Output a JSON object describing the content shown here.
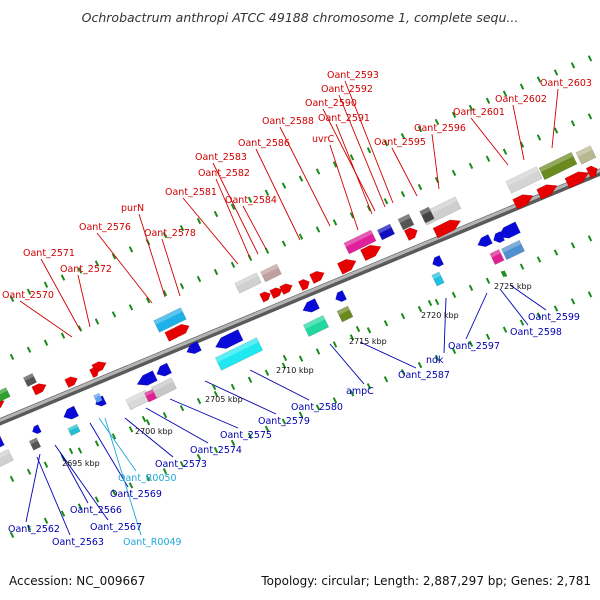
{
  "title": "Ochrobactrum anthropi ATCC 49188 chromosome 1, complete sequ...",
  "footer": {
    "accession": "Accession: NC_009667",
    "summary": "Topology: circular; Length: 2,887,297 bp; Genes: 2,781"
  },
  "colors": {
    "forward_label": "#d00000",
    "reverse_label": "#0000b0",
    "rna_label": "#20a8d8",
    "gene_forward": "#e80000",
    "gene_reverse": "#0a0ad8",
    "backbone": "#888888",
    "ticks": "#1a8a1a"
  },
  "scale_labels": [
    "2695 kbp",
    "2700 kbp",
    "2705 kbp",
    "2710 kbp",
    "2715 kbp",
    "2720 kbp",
    "2725 kbp"
  ],
  "gene_labels": [
    {
      "text": "Oant_2603",
      "strand": "forward"
    },
    {
      "text": "Oant_2593",
      "strand": "forward"
    },
    {
      "text": "Oant_2592",
      "strand": "forward"
    },
    {
      "text": "Oant_2602",
      "strand": "forward"
    },
    {
      "text": "Oant_2590",
      "strand": "forward"
    },
    {
      "text": "Oant_2601",
      "strand": "forward"
    },
    {
      "text": "Oant_2591",
      "strand": "forward"
    },
    {
      "text": "Oant_2588",
      "strand": "forward"
    },
    {
      "text": "Oant_2596",
      "strand": "forward"
    },
    {
      "text": "uvrC",
      "strand": "forward"
    },
    {
      "text": "Oant_2586",
      "strand": "forward"
    },
    {
      "text": "Oant_2595",
      "strand": "forward"
    },
    {
      "text": "Oant_2583",
      "strand": "forward"
    },
    {
      "text": "Oant_2582",
      "strand": "forward"
    },
    {
      "text": "Oant_2581",
      "strand": "forward"
    },
    {
      "text": "Oant_2584",
      "strand": "forward"
    },
    {
      "text": "purN",
      "strand": "forward"
    },
    {
      "text": "Oant_2576",
      "strand": "forward"
    },
    {
      "text": "Oant_2578",
      "strand": "forward"
    },
    {
      "text": "Oant_2571",
      "strand": "forward"
    },
    {
      "text": "Oant_2572",
      "strand": "forward"
    },
    {
      "text": "Oant_2570",
      "strand": "forward"
    },
    {
      "text": "Oant_2599",
      "strand": "reverse"
    },
    {
      "text": "Oant_2598",
      "strand": "reverse"
    },
    {
      "text": "Oant_2597",
      "strand": "reverse"
    },
    {
      "text": "ndk",
      "strand": "reverse"
    },
    {
      "text": "Oant_2587",
      "strand": "reverse"
    },
    {
      "text": "ampC",
      "strand": "reverse"
    },
    {
      "text": "Oant_2580",
      "strand": "reverse"
    },
    {
      "text": "Oant_2579",
      "strand": "reverse"
    },
    {
      "text": "Oant_2575",
      "strand": "reverse"
    },
    {
      "text": "Oant_2574",
      "strand": "reverse"
    },
    {
      "text": "Oant_2573",
      "strand": "reverse"
    },
    {
      "text": "Oant_R0050",
      "strand": "rna"
    },
    {
      "text": "Oant_2569",
      "strand": "reverse"
    },
    {
      "text": "Oant_2567",
      "strand": "reverse"
    },
    {
      "text": "Oant_2566",
      "strand": "reverse"
    },
    {
      "text": "Oant_2562",
      "strand": "reverse"
    },
    {
      "text": "Oant_2563",
      "strand": "reverse"
    },
    {
      "text": "Oant_R0049",
      "strand": "rna"
    }
  ]
}
